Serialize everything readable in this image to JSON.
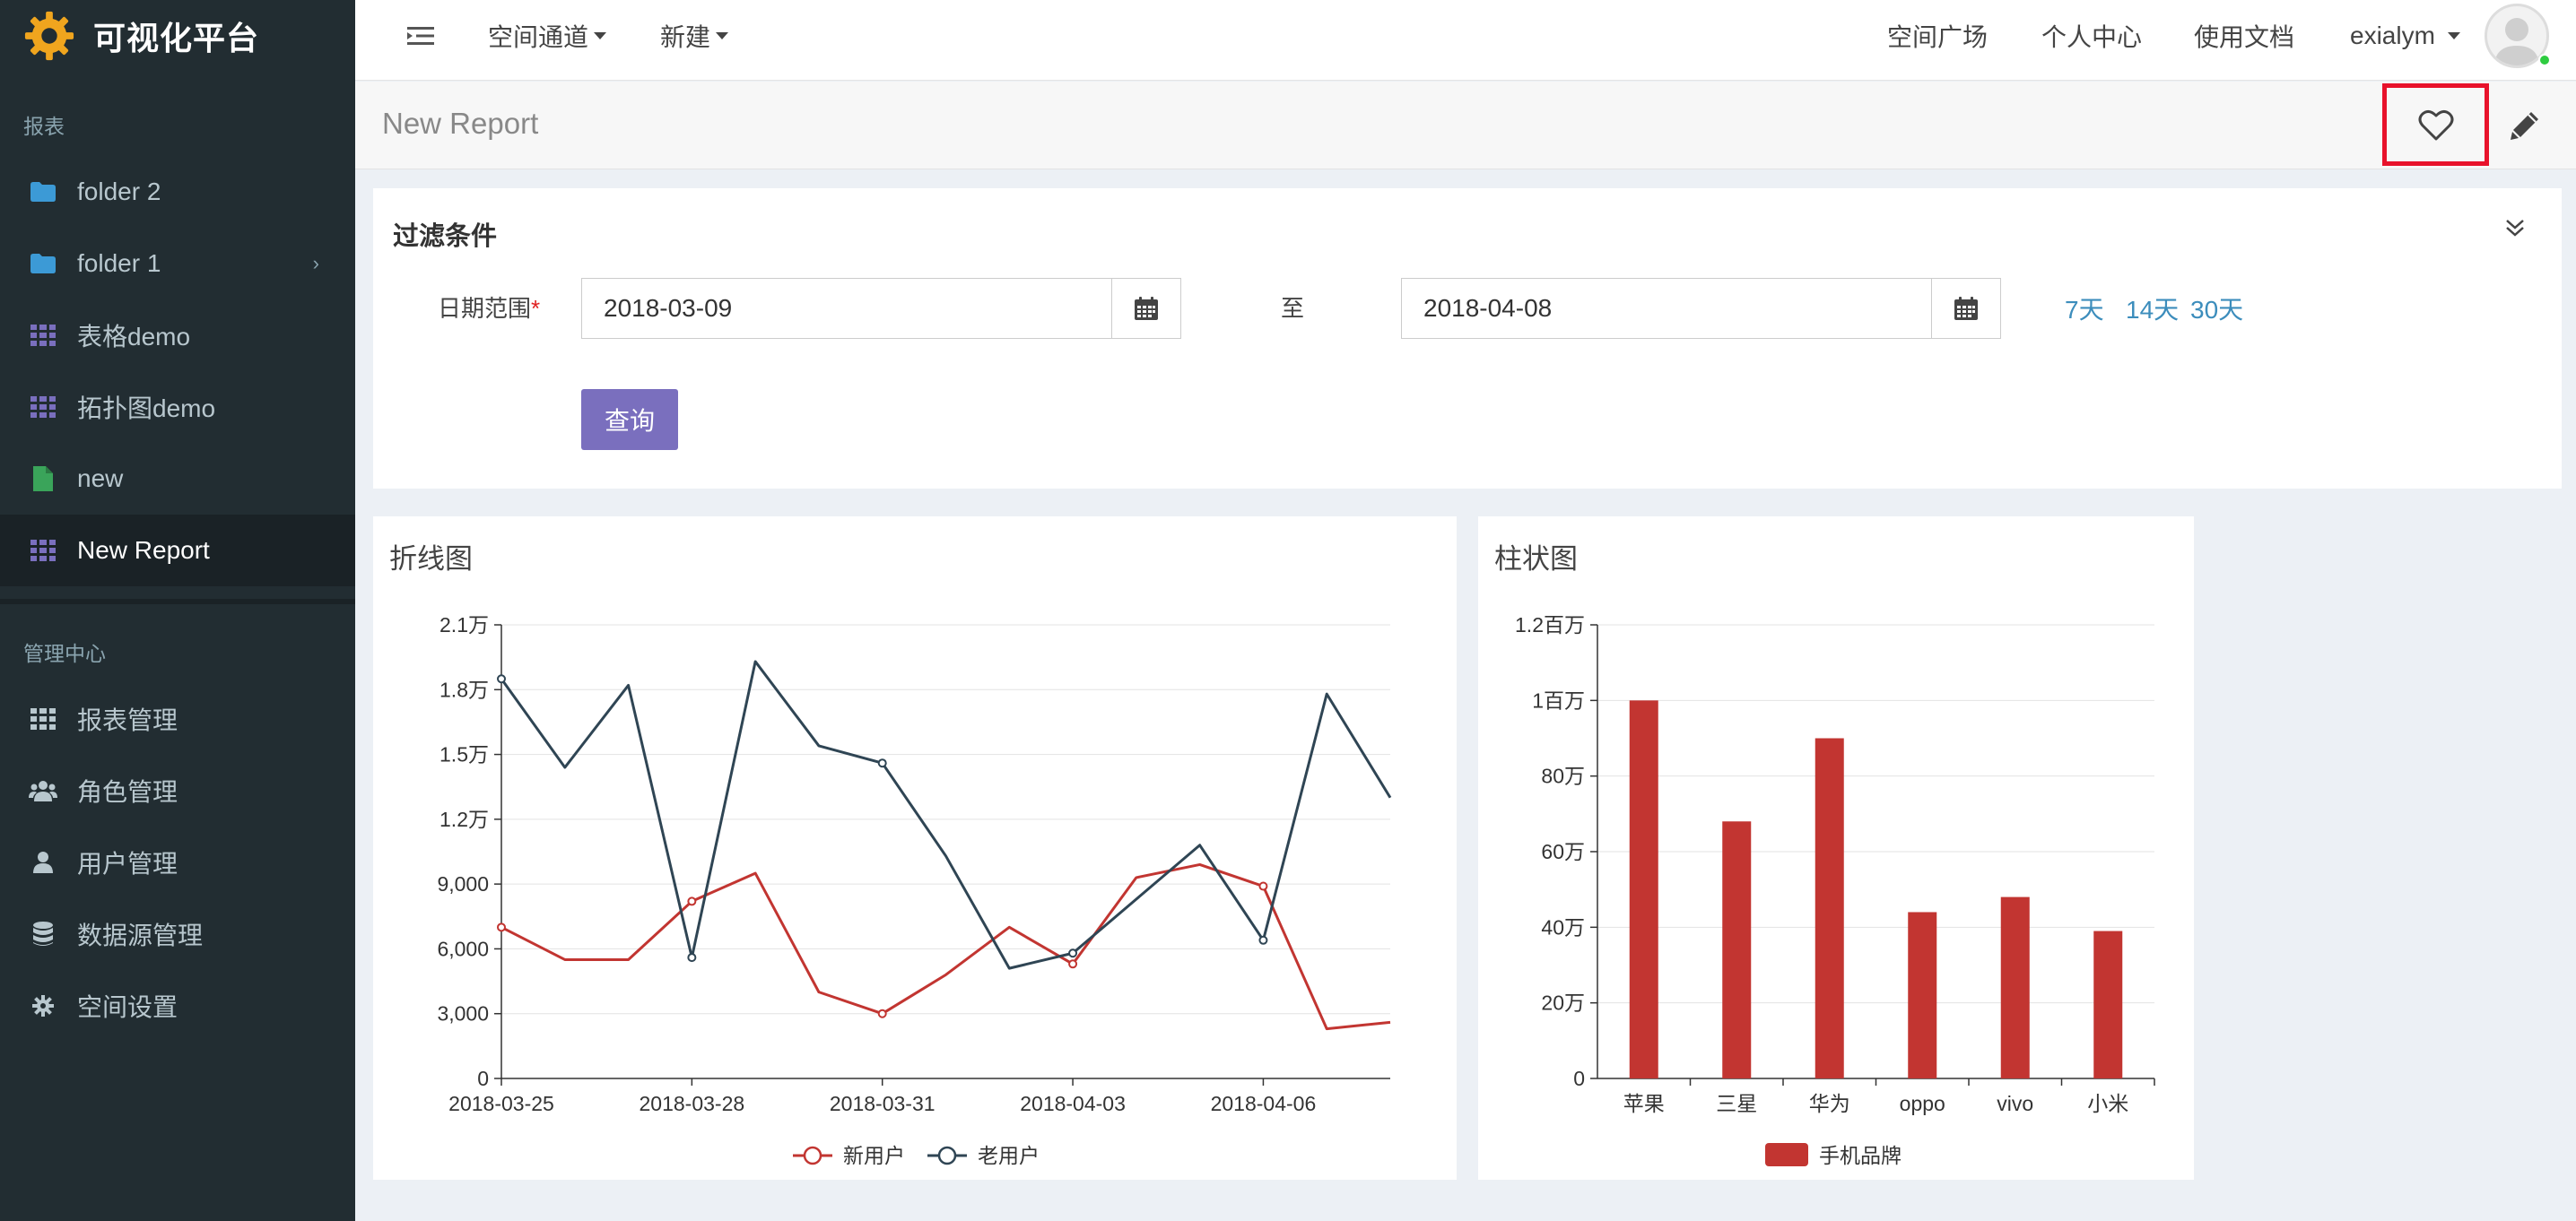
{
  "app": {
    "title": "可视化平台"
  },
  "sidebar": {
    "section_reports": "报表",
    "section_admin": "管理中心",
    "report_items": [
      {
        "label": "folder 2",
        "icon": "folder-icon",
        "color": "#3c9ad6"
      },
      {
        "label": "folder 1",
        "icon": "folder-icon",
        "color": "#3c9ad6"
      },
      {
        "label": "表格demo",
        "icon": "grid-icon",
        "color": "#7a6fbe"
      },
      {
        "label": "拓扑图demo",
        "icon": "grid-icon",
        "color": "#7a6fbe"
      },
      {
        "label": "new",
        "icon": "file-icon",
        "color": "#3aa45a"
      },
      {
        "label": "New Report",
        "icon": "grid-icon",
        "color": "#7a6fbe"
      }
    ],
    "admin_items": [
      {
        "label": "报表管理",
        "icon": "grid-icon"
      },
      {
        "label": "角色管理",
        "icon": "users-icon"
      },
      {
        "label": "用户管理",
        "icon": "user-icon"
      },
      {
        "label": "数据源管理",
        "icon": "database-icon"
      },
      {
        "label": "空间设置",
        "icon": "gear-icon"
      }
    ]
  },
  "header": {
    "space_channel": "空间通道",
    "new": "新建",
    "square": "空间广场",
    "personal": "个人中心",
    "docs": "使用文档",
    "username": "exialym"
  },
  "page": {
    "title": "New Report"
  },
  "filter": {
    "title": "过滤条件",
    "date_label": "日期范围",
    "required_mark": "*",
    "start_date": "2018-03-09",
    "to": "至",
    "end_date": "2018-04-08",
    "quick_7": "7天",
    "quick_14": "14天",
    "quick_30": "30天",
    "query": "查询"
  },
  "line_panel_title": "折线图",
  "bar_panel_title": "柱状图",
  "chart_data": [
    {
      "type": "line",
      "x": [
        "2018-03-25",
        "2018-03-26",
        "2018-03-27",
        "2018-03-28",
        "2018-03-29",
        "2018-03-30",
        "2018-03-31",
        "2018-04-01",
        "2018-04-02",
        "2018-04-03",
        "2018-04-04",
        "2018-04-05",
        "2018-04-06",
        "2018-04-07",
        "2018-04-08"
      ],
      "x_tick_labels": [
        "2018-03-25",
        "2018-03-28",
        "2018-03-31",
        "2018-04-03",
        "2018-04-06"
      ],
      "y_tick_labels": [
        "0",
        "3,000",
        "6,000",
        "9,000",
        "1.2万",
        "1.5万",
        "1.8万",
        "2.1万"
      ],
      "ylim": [
        0,
        21000
      ],
      "series": [
        {
          "name": "新用户",
          "color": "#c23531",
          "values": [
            7000,
            5500,
            5500,
            8200,
            9500,
            4000,
            3000,
            4800,
            7000,
            5300,
            9300,
            9900,
            8900,
            2300,
            2600
          ]
        },
        {
          "name": "老用户",
          "color": "#2f4554",
          "values": [
            18500,
            14400,
            18200,
            5600,
            19300,
            15400,
            14600,
            10300,
            5100,
            5800,
            8300,
            10800,
            6400,
            17800,
            13000
          ]
        }
      ],
      "grid": true,
      "legend_position": "bottom"
    },
    {
      "type": "bar",
      "categories": [
        "苹果",
        "三星",
        "华为",
        "oppo",
        "vivo",
        "小米"
      ],
      "values": [
        1000000,
        680000,
        900000,
        440000,
        480000,
        390000
      ],
      "y_tick_labels": [
        "0",
        "20万",
        "40万",
        "60万",
        "80万",
        "1百万",
        "1.2百万"
      ],
      "ylim": [
        0,
        1200000
      ],
      "series": [
        {
          "name": "手机品牌",
          "color": "#c23531"
        }
      ],
      "grid": true,
      "legend_position": "bottom"
    }
  ]
}
